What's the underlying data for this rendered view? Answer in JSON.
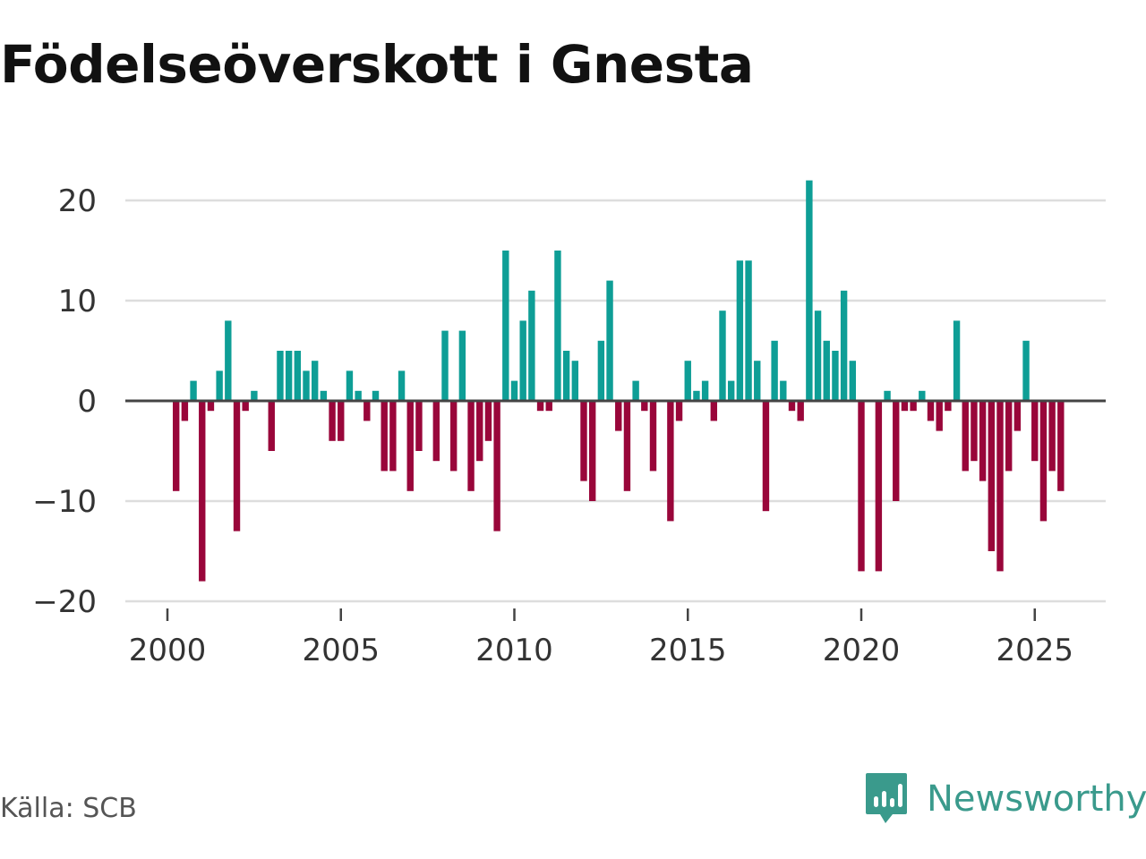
{
  "header": {
    "title": "Födelseöverskott i Gnesta"
  },
  "footer": {
    "source": "Källa: SCB",
    "brand": "Newsworthy"
  },
  "colors": {
    "positive": "#0e9e96",
    "negative": "#99063a",
    "grid": "#dddddd",
    "zero_line": "#444444"
  },
  "chart_data": {
    "type": "bar",
    "title": "Födelseöverskott i Gnesta",
    "xlabel": "",
    "ylabel": "",
    "x_start": 2000.25,
    "x_step": 0.25,
    "xlim": [
      1999.5,
      2027.2
    ],
    "ylim": [
      -22,
      22
    ],
    "x_ticks": [
      2000,
      2005,
      2010,
      2015,
      2020,
      2025
    ],
    "x_tick_labels": [
      "2000",
      "2005",
      "2010",
      "2015",
      "2020",
      "2025"
    ],
    "y_ticks": [
      -20,
      -10,
      0,
      10,
      20
    ],
    "y_tick_labels": [
      "−20",
      "−10",
      "0",
      "10",
      "20"
    ],
    "grid": true,
    "values": [
      -9,
      -2,
      2,
      -18,
      -1,
      3,
      8,
      -13,
      -1,
      1,
      0,
      -5,
      5,
      5,
      5,
      3,
      4,
      1,
      -4,
      -4,
      3,
      1,
      -2,
      1,
      -7,
      -7,
      3,
      -9,
      -5,
      0,
      -6,
      7,
      -7,
      7,
      -9,
      -6,
      -4,
      -13,
      15,
      2,
      8,
      11,
      -1,
      -1,
      15,
      5,
      4,
      -8,
      -10,
      6,
      12,
      -3,
      -9,
      2,
      -1,
      -7,
      0,
      -12,
      -2,
      4,
      1,
      2,
      -2,
      9,
      2,
      14,
      14,
      4,
      -11,
      6,
      2,
      -1,
      -2,
      22,
      9,
      6,
      5,
      11,
      4,
      -17,
      0,
      -17,
      1,
      -10,
      -1,
      -1,
      1,
      -2,
      -3,
      -1,
      8,
      -7,
      -6,
      -8,
      -15,
      -17,
      -7,
      -3,
      6,
      -6,
      -12,
      -7,
      -9
    ]
  }
}
